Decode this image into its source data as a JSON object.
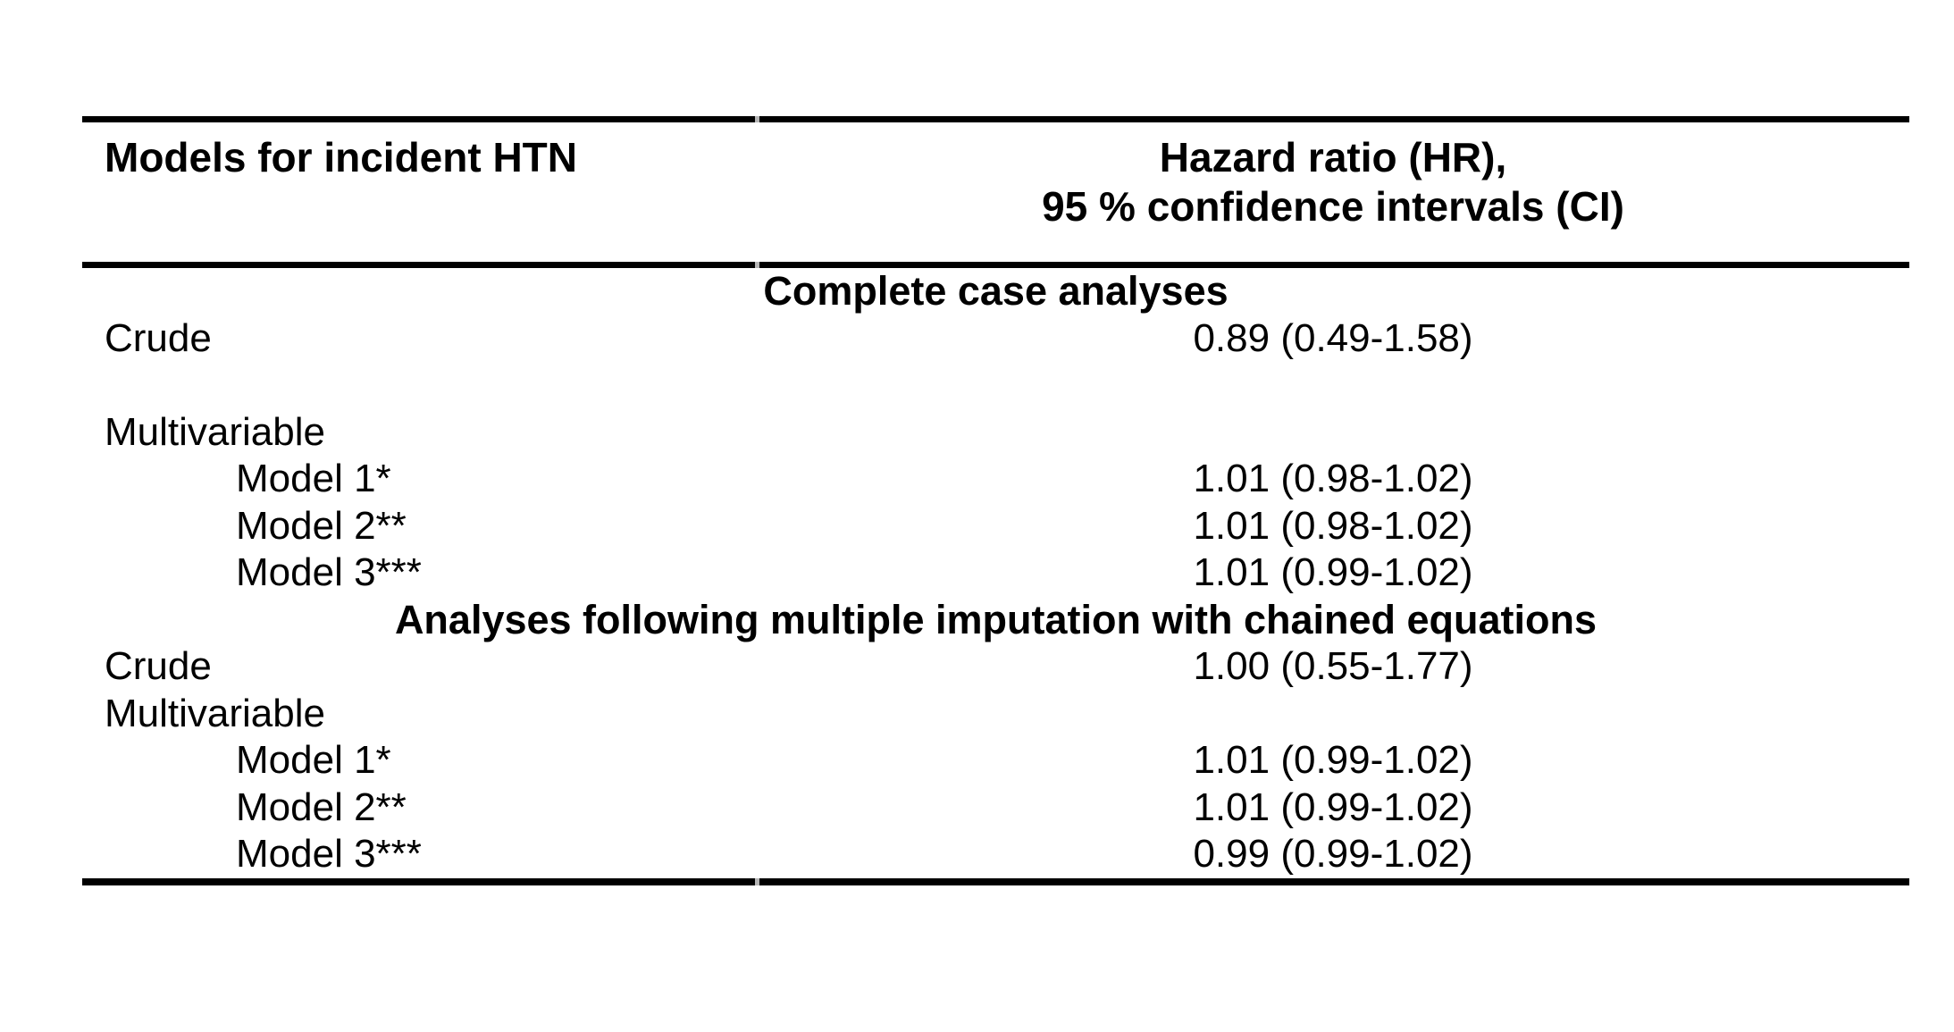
{
  "table": {
    "header": {
      "col1": "Models for incident HTN",
      "col2_line1": "Hazard ratio (HR),",
      "col2_line2": "95 % confidence intervals (CI)"
    },
    "sections": [
      {
        "heading": "Complete case analyses",
        "rows": [
          {
            "label": "Crude",
            "indent": false,
            "value": "0.89 (0.49-1.58)"
          },
          {
            "label": "",
            "indent": false,
            "value": ""
          },
          {
            "label": "Multivariable",
            "indent": false,
            "value": ""
          },
          {
            "label": "Model 1*",
            "indent": true,
            "value": "1.01 (0.98-1.02)"
          },
          {
            "label": "Model 2**",
            "indent": true,
            "value": "1.01 (0.98-1.02)"
          },
          {
            "label": "Model 3***",
            "indent": true,
            "value": "1.01 (0.99-1.02)"
          }
        ]
      },
      {
        "heading": "Analyses following multiple imputation with chained equations",
        "rows": [
          {
            "label": "Crude",
            "indent": false,
            "value": "1.00 (0.55-1.77)"
          },
          {
            "label": "Multivariable",
            "indent": false,
            "value": ""
          },
          {
            "label": "Model 1*",
            "indent": true,
            "value": "1.01 (0.99-1.02)"
          },
          {
            "label": "Model 2**",
            "indent": true,
            "value": "1.01 (0.99-1.02)"
          },
          {
            "label": "Model 3***",
            "indent": true,
            "value": "0.99 (0.99-1.02)"
          }
        ]
      }
    ],
    "colors": {
      "text": "#000000",
      "background": "#ffffff",
      "rule": "#000000"
    }
  }
}
